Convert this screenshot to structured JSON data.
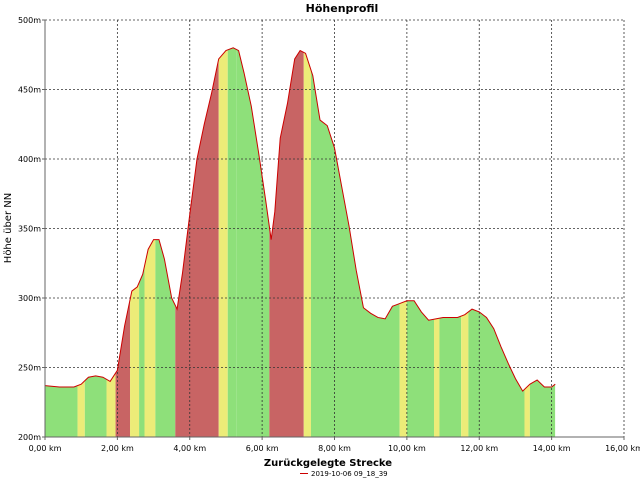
{
  "chart_data": {
    "type": "area",
    "title": "Höhenprofil",
    "xlabel": "Zurückgelegte Strecke",
    "ylabel": "Höhe über NN",
    "xlim": [
      0,
      16
    ],
    "ylim": [
      200,
      500
    ],
    "x_ticks": [
      0,
      2,
      4,
      6,
      8,
      10,
      12,
      14,
      16
    ],
    "x_tick_labels": [
      "0,00 km",
      "2,00 km",
      "4,00 km",
      "6,00 km",
      "8,00 km",
      "10,00 km",
      "12,00 km",
      "14,00 km",
      "16,00 km"
    ],
    "y_ticks": [
      200,
      250,
      300,
      350,
      400,
      450,
      500
    ],
    "y_tick_labels": [
      "200m",
      "250m",
      "300m",
      "350m",
      "400m",
      "450m",
      "500m"
    ],
    "grid": true,
    "legend": "bottom-center",
    "series": [
      {
        "name": "2019-10-06 09_18_39",
        "color": "#cc0000",
        "x": [
          0,
          0.4,
          0.8,
          1.0,
          1.2,
          1.4,
          1.6,
          1.8,
          2.0,
          2.2,
          2.4,
          2.55,
          2.7,
          2.85,
          3.0,
          3.15,
          3.3,
          3.5,
          3.65,
          3.8,
          4.0,
          4.2,
          4.4,
          4.6,
          4.8,
          5.0,
          5.2,
          5.35,
          5.5,
          5.7,
          5.9,
          6.1,
          6.25,
          6.35,
          6.5,
          6.7,
          6.9,
          7.05,
          7.2,
          7.4,
          7.6,
          7.8,
          8.0,
          8.2,
          8.4,
          8.6,
          8.8,
          9.0,
          9.2,
          9.4,
          9.6,
          9.8,
          10.0,
          10.2,
          10.4,
          10.6,
          10.8,
          11.0,
          11.2,
          11.4,
          11.6,
          11.8,
          12.0,
          12.2,
          12.4,
          12.6,
          12.8,
          13.0,
          13.2,
          13.4,
          13.6,
          13.8,
          14.0,
          14.1
        ],
        "values": [
          237,
          236,
          236,
          238,
          243,
          244,
          243,
          240,
          248,
          280,
          305,
          308,
          317,
          335,
          342,
          342,
          328,
          300,
          292,
          318,
          360,
          400,
          425,
          447,
          472,
          478,
          480,
          478,
          462,
          438,
          405,
          370,
          342,
          362,
          415,
          440,
          472,
          478,
          476,
          460,
          428,
          424,
          408,
          380,
          352,
          320,
          293,
          289,
          286,
          285,
          294,
          296,
          298,
          298,
          290,
          284,
          285,
          286,
          286,
          286,
          288,
          292,
          290,
          286,
          278,
          265,
          253,
          242,
          233,
          238,
          241,
          236,
          236,
          238
        ]
      }
    ],
    "slope_bands": [
      {
        "x0": 0.0,
        "x1": 0.9,
        "class": "flat"
      },
      {
        "x0": 0.9,
        "x1": 1.1,
        "class": "moderate"
      },
      {
        "x0": 1.1,
        "x1": 1.7,
        "class": "flat"
      },
      {
        "x0": 1.7,
        "x1": 1.95,
        "class": "moderate"
      },
      {
        "x0": 1.95,
        "x1": 2.35,
        "class": "steep"
      },
      {
        "x0": 2.35,
        "x1": 2.6,
        "class": "moderate"
      },
      {
        "x0": 2.6,
        "x1": 2.75,
        "class": "flat"
      },
      {
        "x0": 2.75,
        "x1": 3.05,
        "class": "moderate"
      },
      {
        "x0": 3.05,
        "x1": 3.6,
        "class": "flat"
      },
      {
        "x0": 3.6,
        "x1": 4.8,
        "class": "steep"
      },
      {
        "x0": 4.8,
        "x1": 5.05,
        "class": "moderate"
      },
      {
        "x0": 5.05,
        "x1": 5.3,
        "class": "flat"
      },
      {
        "x0": 5.3,
        "x1": 6.2,
        "class": "flat"
      },
      {
        "x0": 6.2,
        "x1": 7.15,
        "class": "steep"
      },
      {
        "x0": 7.15,
        "x1": 7.35,
        "class": "moderate"
      },
      {
        "x0": 7.35,
        "x1": 9.8,
        "class": "flat"
      },
      {
        "x0": 9.8,
        "x1": 10.0,
        "class": "moderate"
      },
      {
        "x0": 10.0,
        "x1": 10.75,
        "class": "flat"
      },
      {
        "x0": 10.75,
        "x1": 10.9,
        "class": "moderate"
      },
      {
        "x0": 10.9,
        "x1": 11.5,
        "class": "flat"
      },
      {
        "x0": 11.5,
        "x1": 11.7,
        "class": "moderate"
      },
      {
        "x0": 11.7,
        "x1": 13.25,
        "class": "flat"
      },
      {
        "x0": 13.25,
        "x1": 13.4,
        "class": "moderate"
      },
      {
        "x0": 13.4,
        "x1": 14.1,
        "class": "flat"
      }
    ],
    "band_colors": {
      "flat": "#8ee07a",
      "moderate": "#ecec78",
      "steep": "#c86464"
    },
    "line_color": "#cc0000",
    "grid_color": "#333333",
    "axis_color": "#666666"
  }
}
